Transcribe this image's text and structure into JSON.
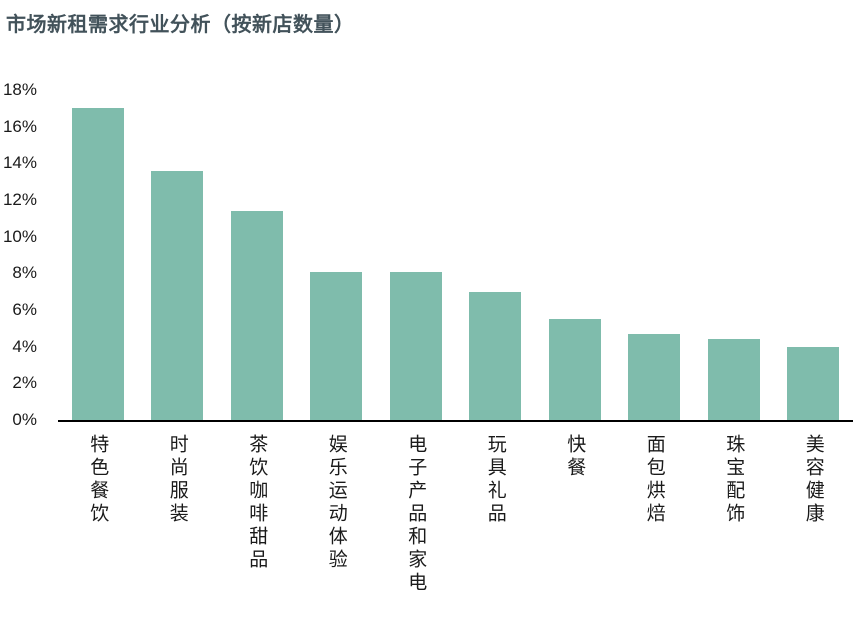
{
  "title": "市场新租需求行业分析（按新店数量）",
  "colors": {
    "bar": "#7FBCAC",
    "title_text": "#42525A",
    "tick_text": "#1A1A1A",
    "axis_line": "#000000"
  },
  "chart_data": {
    "type": "bar",
    "title": "市场新租需求行业分析（按新店数量）",
    "categories": [
      "特色餐饮",
      "时尚服装",
      "茶饮咖啡甜品",
      "娱乐运动体验",
      "电子产品和家电",
      "玩具礼品",
      "快餐",
      "面包烘焙",
      "珠宝配饰",
      "美容健康"
    ],
    "values": [
      17.0,
      13.6,
      11.4,
      8.1,
      8.1,
      7.0,
      5.5,
      4.7,
      4.4,
      4.0
    ],
    "xlabel": "",
    "ylabel": "",
    "ylim": [
      0,
      18
    ],
    "ytick_step": 2,
    "ytick_labels": [
      "0%",
      "2%",
      "4%",
      "6%",
      "8%",
      "10%",
      "12%",
      "14%",
      "16%",
      "18%"
    ],
    "ytick_format": "percent",
    "grid": false,
    "legend": "none",
    "bar_color": "#7FBCAC",
    "category_label_orientation": "vertical"
  }
}
